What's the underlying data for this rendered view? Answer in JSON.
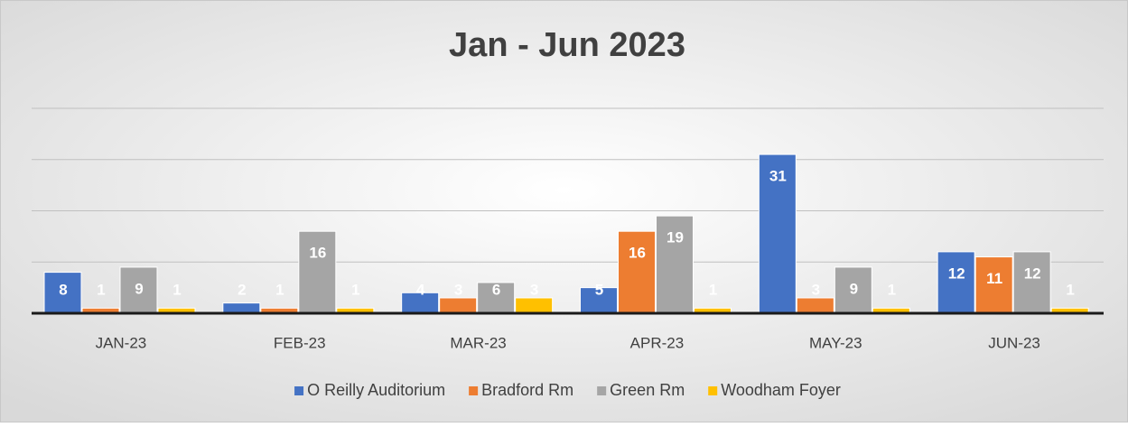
{
  "chart_data": {
    "type": "bar",
    "title": "Jan - Jun 2023",
    "categories": [
      "JAN-23",
      "FEB-23",
      "MAR-23",
      "APR-23",
      "MAY-23",
      "JUN-23"
    ],
    "series": [
      {
        "name": "O Reilly Auditorium",
        "color": "#4472c4",
        "values": [
          8,
          2,
          4,
          5,
          31,
          12
        ]
      },
      {
        "name": "Bradford Rm",
        "color": "#ed7d31",
        "values": [
          1,
          1,
          3,
          16,
          3,
          11
        ]
      },
      {
        "name": "Green Rm",
        "color": "#a5a5a5",
        "values": [
          9,
          16,
          6,
          19,
          9,
          12
        ]
      },
      {
        "name": "Woodham Foyer",
        "color": "#ffc000",
        "values": [
          1,
          1,
          3,
          1,
          1,
          1
        ]
      }
    ],
    "ylim": [
      0,
      40
    ],
    "yticks": [
      0,
      10,
      20,
      30,
      40
    ],
    "grid": true,
    "legend": "bottom"
  }
}
